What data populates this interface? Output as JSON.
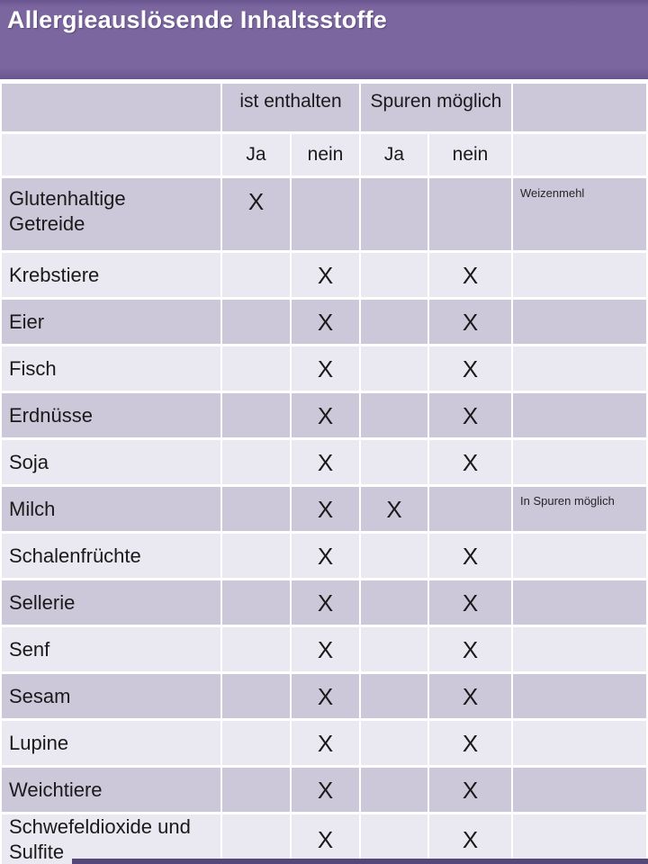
{
  "title_bar": {
    "title": "Allergieauslösende Inhaltsstoffe"
  },
  "table": {
    "group_headers": [
      {
        "label": ""
      },
      {
        "label": "ist enthalten"
      },
      {
        "label": "Spuren möglich"
      },
      {
        "label": ""
      }
    ],
    "sub_headers": [
      "",
      "Ja",
      "nein",
      "Ja",
      "nein",
      ""
    ],
    "rows": [
      {
        "label": "Glutenhaltige Getreide",
        "ist_enthalten_ja": "X",
        "ist_enthalten_nein": "",
        "spuren_ja": "",
        "spuren_nein": "",
        "note": "Weizenmehl"
      },
      {
        "label": "Krebstiere",
        "ist_enthalten_ja": "",
        "ist_enthalten_nein": "X",
        "spuren_ja": "",
        "spuren_nein": "X",
        "note": ""
      },
      {
        "label": "Eier",
        "ist_enthalten_ja": "",
        "ist_enthalten_nein": "X",
        "spuren_ja": "",
        "spuren_nein": "X",
        "note": ""
      },
      {
        "label": "Fisch",
        "ist_enthalten_ja": "",
        "ist_enthalten_nein": "X",
        "spuren_ja": "",
        "spuren_nein": "X",
        "note": ""
      },
      {
        "label": "Erdnüsse",
        "ist_enthalten_ja": "",
        "ist_enthalten_nein": "X",
        "spuren_ja": "",
        "spuren_nein": "X",
        "note": ""
      },
      {
        "label": "Soja",
        "ist_enthalten_ja": "",
        "ist_enthalten_nein": "X",
        "spuren_ja": "",
        "spuren_nein": "X",
        "note": ""
      },
      {
        "label": "Milch",
        "ist_enthalten_ja": "",
        "ist_enthalten_nein": "X",
        "spuren_ja": "X",
        "spuren_nein": "",
        "note": "In Spuren möglich"
      },
      {
        "label": "Schalenfrüchte",
        "ist_enthalten_ja": "",
        "ist_enthalten_nein": "X",
        "spuren_ja": "",
        "spuren_nein": "X",
        "note": ""
      },
      {
        "label": "Sellerie",
        "ist_enthalten_ja": "",
        "ist_enthalten_nein": "X",
        "spuren_ja": "",
        "spuren_nein": "X",
        "note": ""
      },
      {
        "label": "Senf",
        "ist_enthalten_ja": "",
        "ist_enthalten_nein": "X",
        "spuren_ja": "",
        "spuren_nein": "X",
        "note": ""
      },
      {
        "label": "Sesam",
        "ist_enthalten_ja": "",
        "ist_enthalten_nein": "X",
        "spuren_ja": "",
        "spuren_nein": "X",
        "note": ""
      },
      {
        "label": "Lupine",
        "ist_enthalten_ja": "",
        "ist_enthalten_nein": "X",
        "spuren_ja": "",
        "spuren_nein": "X",
        "note": ""
      },
      {
        "label": "Weichtiere",
        "ist_enthalten_ja": "",
        "ist_enthalten_nein": "X",
        "spuren_ja": "",
        "spuren_nein": "X",
        "note": ""
      },
      {
        "label": "Schwefeldioxide und Sulfite",
        "ist_enthalten_ja": "",
        "ist_enthalten_nein": "X",
        "spuren_ja": "",
        "spuren_nein": "X",
        "note": ""
      }
    ]
  },
  "colors": {
    "accent_purple": "#7b66a0",
    "accent_purple_dark": "#69558f",
    "row_dark": "#cdc8d9",
    "row_light": "#eae8f0",
    "strip": "#544878",
    "text": "#1a1a1a"
  }
}
